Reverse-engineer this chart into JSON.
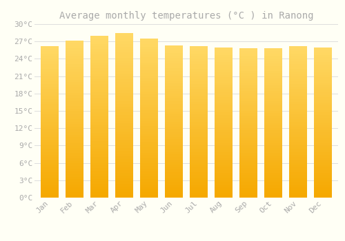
{
  "title": "Average monthly temperatures (°C ) in Ranong",
  "months": [
    "Jan",
    "Feb",
    "Mar",
    "Apr",
    "May",
    "Jun",
    "Jul",
    "Aug",
    "Sep",
    "Oct",
    "Nov",
    "Dec"
  ],
  "temperatures": [
    26.2,
    27.2,
    28.0,
    28.5,
    27.5,
    26.3,
    26.2,
    26.0,
    25.8,
    25.8,
    26.2,
    26.0
  ],
  "bar_color_bottom": "#F5A800",
  "bar_color_top": "#FFD966",
  "background_color": "#FFFFF5",
  "grid_color": "#DDDDDD",
  "text_color": "#AAAAAA",
  "ylim": [
    0,
    30
  ],
  "ytick_step": 3,
  "title_fontsize": 10,
  "tick_fontsize": 8
}
